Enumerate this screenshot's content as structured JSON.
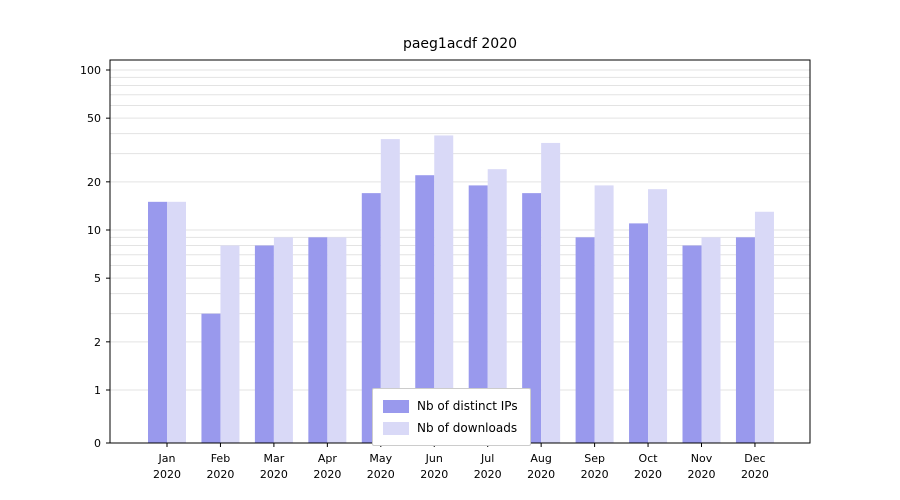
{
  "title": "paeg1acdf 2020",
  "chart_data": {
    "type": "bar",
    "title": "paeg1acdf 2020",
    "categories": [
      "Jan",
      "Feb",
      "Mar",
      "Apr",
      "May",
      "Jun",
      "Jul",
      "Aug",
      "Sep",
      "Oct",
      "Nov",
      "Dec"
    ],
    "year_label": "2020",
    "series": [
      {
        "name": "Nb of distinct IPs",
        "color": "#9999ed",
        "values": [
          15,
          3,
          8,
          9,
          17,
          22,
          19,
          17,
          9,
          11,
          8,
          9
        ]
      },
      {
        "name": "Nb of downloads",
        "color": "#d9d9f7",
        "values": [
          15,
          8,
          9,
          9,
          37,
          39,
          24,
          35,
          19,
          18,
          9,
          13
        ]
      }
    ],
    "yticks": [
      0,
      1,
      2,
      5,
      10,
      20,
      50,
      100
    ],
    "yscale": "symlog",
    "ylim": [
      0,
      100
    ],
    "xlabel": "",
    "ylabel": "",
    "grid": true,
    "legend_position": "lower center"
  }
}
